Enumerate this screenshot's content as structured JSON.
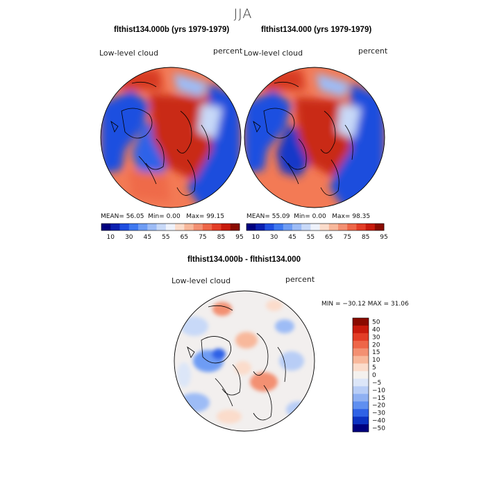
{
  "figure": {
    "season": "JJA"
  },
  "panels": [
    {
      "title": "flthist134.000b (yrs 1979-1979)",
      "variable": "Low-level cloud",
      "units": "percent",
      "stats": {
        "mean_label": "MEAN=",
        "mean": "56.05",
        "min_label": "Min=",
        "min": "0.00",
        "max_label": "Max=",
        "max": "99.15"
      }
    },
    {
      "title": "flthist134.000 (yrs 1979-1979)",
      "variable": "Low-level cloud",
      "units": "percent",
      "stats": {
        "mean_label": "MEAN=",
        "mean": "55.09",
        "min_label": "Min=",
        "min": "0.00",
        "max_label": "Max=",
        "max": "98.35"
      }
    },
    {
      "title": "flthist134.000b - flthist134.000",
      "variable": "Low-level cloud",
      "units": "percent",
      "stats": {
        "text": "MIN = −30.12 MAX =  31.06"
      }
    }
  ],
  "colorbars": {
    "field": {
      "labels": [
        "10",
        "30",
        "45",
        "55",
        "65",
        "75",
        "85",
        "95"
      ],
      "colors": [
        "#00007f",
        "#0a1fb0",
        "#1f4ee0",
        "#3f78f0",
        "#6e9cf4",
        "#9dbcf6",
        "#c8d9f8",
        "#eef2fb",
        "#fbdccb",
        "#f8b89b",
        "#f39072",
        "#ee6648",
        "#e33d26",
        "#c81a0c",
        "#8a0a00"
      ]
    },
    "diff": {
      "labels": [
        "50",
        "40",
        "30",
        "20",
        "15",
        "10",
        "5",
        "0",
        "−5",
        "−10",
        "−15",
        "−20",
        "−30",
        "−40",
        "−50"
      ],
      "colors": [
        "#8a0a00",
        "#c81a0c",
        "#e33d26",
        "#ee6648",
        "#f39072",
        "#f8b89b",
        "#fbdccb",
        "#f4f1ee",
        "#dce6f8",
        "#b8cdf6",
        "#8fb0f2",
        "#5f8ff0",
        "#2f62e6",
        "#0c32c2",
        "#00007f"
      ]
    }
  }
}
